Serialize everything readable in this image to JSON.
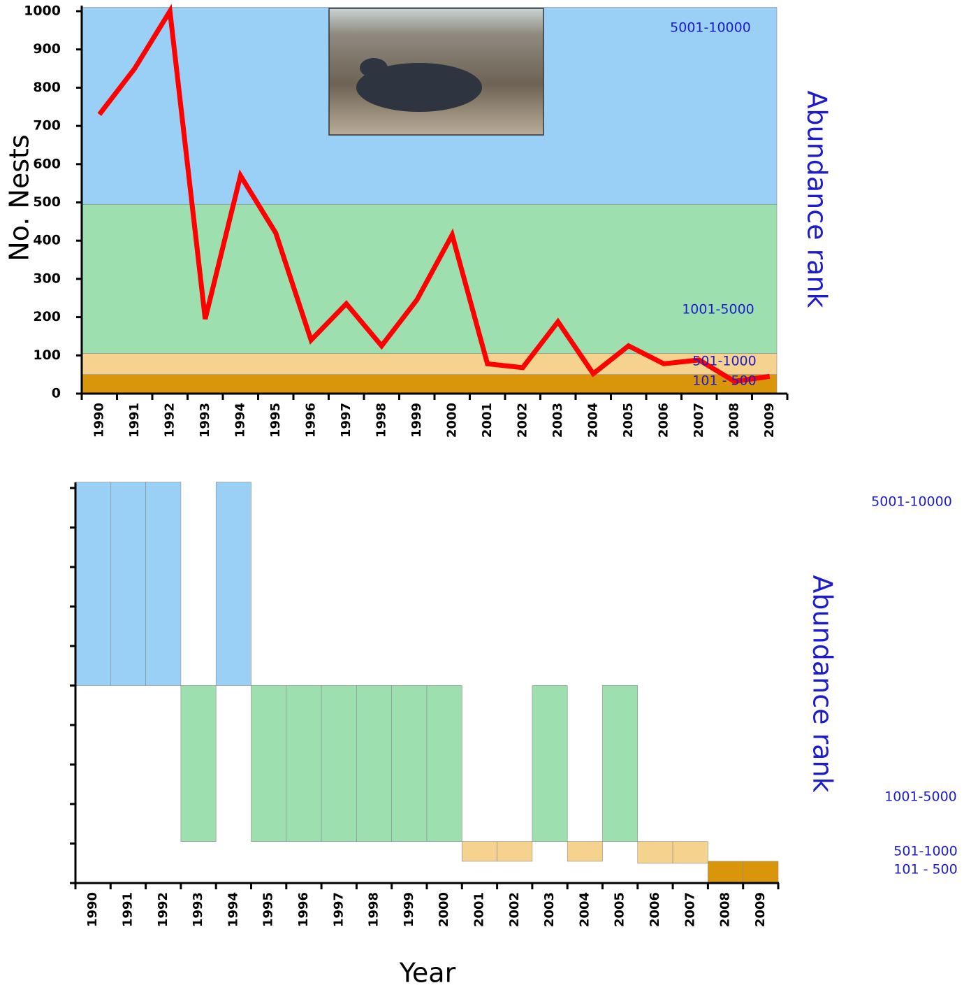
{
  "chart_data": [
    {
      "type": "line",
      "y_label": "No. Nests",
      "right_label": "Abundance rank",
      "categories": [
        "1990",
        "1991",
        "1992",
        "1993",
        "1994",
        "1995",
        "1996",
        "1997",
        "1998",
        "1999",
        "2000",
        "2001",
        "2002",
        "2003",
        "2004",
        "2005",
        "2006",
        "2007",
        "2008",
        "2009"
      ],
      "values": [
        730,
        850,
        1000,
        195,
        570,
        420,
        140,
        235,
        125,
        245,
        415,
        78,
        68,
        188,
        52,
        125,
        78,
        88,
        32,
        45
      ],
      "color": "#ff0000",
      "ylim": [
        0,
        1000
      ],
      "yticks": [
        0,
        100,
        200,
        300,
        400,
        500,
        600,
        700,
        800,
        900,
        1000
      ],
      "bands": [
        {
          "label": "101 - 500",
          "from": 0,
          "to": 50,
          "color": "#d9960a"
        },
        {
          "label": "501-1000",
          "from": 50,
          "to": 105,
          "color": "#f5d38f"
        },
        {
          "label": "1001-5000",
          "from": 105,
          "to": 495,
          "color": "#9ddfae"
        },
        {
          "label": "5001-10000",
          "from": 495,
          "to": 1010,
          "color": "#9ad0f5"
        }
      ]
    },
    {
      "type": "range",
      "x_label": "Year",
      "right_label": "Abundance rank",
      "categories": [
        "1990",
        "1991",
        "1992",
        "1993",
        "1994",
        "1995",
        "1996",
        "1997",
        "1998",
        "1999",
        "2000",
        "2001",
        "2002",
        "2003",
        "2004",
        "2005",
        "2006",
        "2007",
        "2008",
        "2009"
      ],
      "low": [
        500,
        500,
        500,
        105,
        500,
        105,
        105,
        105,
        105,
        105,
        105,
        55,
        55,
        105,
        55,
        105,
        50,
        50,
        0,
        0
      ],
      "high": [
        1015,
        1015,
        1015,
        500,
        1015,
        500,
        500,
        500,
        500,
        500,
        500,
        105,
        105,
        500,
        105,
        500,
        105,
        105,
        55,
        55
      ],
      "colors": [
        "#9ad0f5",
        "#9ad0f5",
        "#9ad0f5",
        "#9ddfae",
        "#9ad0f5",
        "#9ddfae",
        "#9ddfae",
        "#9ddfae",
        "#9ddfae",
        "#9ddfae",
        "#9ddfae",
        "#f5d38f",
        "#f5d38f",
        "#9ddfae",
        "#f5d38f",
        "#9ddfae",
        "#f5d38f",
        "#f5d38f",
        "#d9960a",
        "#d9960a"
      ],
      "ylim": [
        0,
        1000
      ],
      "yticks": [
        0,
        100,
        200,
        300,
        400,
        500,
        600,
        700,
        800,
        900,
        1000
      ],
      "ytick_labels": false,
      "rank_labels": [
        "5001-10000",
        "1001-5000",
        "501-1000",
        "101 - 500"
      ]
    }
  ]
}
